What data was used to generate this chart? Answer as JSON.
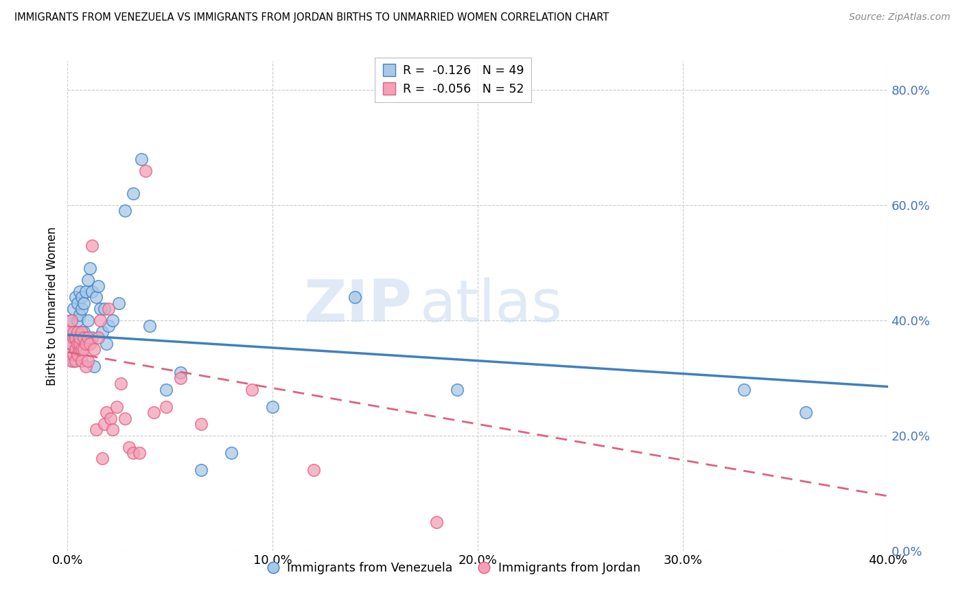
{
  "title": "IMMIGRANTS FROM VENEZUELA VS IMMIGRANTS FROM JORDAN BIRTHS TO UNMARRIED WOMEN CORRELATION CHART",
  "source": "Source: ZipAtlas.com",
  "ylabel": "Births to Unmarried Women",
  "xlim": [
    0.0,
    0.4
  ],
  "ylim": [
    0.0,
    0.85
  ],
  "yticks": [
    0.0,
    0.2,
    0.4,
    0.6,
    0.8
  ],
  "xticks": [
    0.0,
    0.1,
    0.2,
    0.3,
    0.4
  ],
  "blue_color": "#a8c8e8",
  "pink_color": "#f4a0b8",
  "blue_line_color": "#4080c0",
  "pink_line_color": "#e06080",
  "watermark_zip": "ZIP",
  "watermark_atlas": "atlas",
  "blue_R": "-0.126",
  "blue_N": "49",
  "pink_R": "-0.056",
  "pink_N": "52",
  "legend2_blue": "Immigrants from Venezuela",
  "legend2_pink": "Immigrants from Jordan",
  "venezuela_x": [
    0.001,
    0.002,
    0.002,
    0.003,
    0.003,
    0.003,
    0.004,
    0.004,
    0.005,
    0.005,
    0.005,
    0.006,
    0.006,
    0.006,
    0.007,
    0.007,
    0.007,
    0.008,
    0.008,
    0.009,
    0.009,
    0.01,
    0.01,
    0.011,
    0.012,
    0.012,
    0.013,
    0.014,
    0.015,
    0.016,
    0.017,
    0.018,
    0.019,
    0.02,
    0.022,
    0.025,
    0.028,
    0.032,
    0.036,
    0.04,
    0.048,
    0.055,
    0.065,
    0.08,
    0.1,
    0.14,
    0.19,
    0.33,
    0.36
  ],
  "venezuela_y": [
    0.37,
    0.36,
    0.4,
    0.33,
    0.37,
    0.42,
    0.38,
    0.44,
    0.37,
    0.4,
    0.43,
    0.37,
    0.41,
    0.45,
    0.36,
    0.42,
    0.44,
    0.38,
    0.43,
    0.36,
    0.45,
    0.4,
    0.47,
    0.49,
    0.45,
    0.37,
    0.32,
    0.44,
    0.46,
    0.42,
    0.38,
    0.42,
    0.36,
    0.39,
    0.4,
    0.43,
    0.59,
    0.62,
    0.68,
    0.39,
    0.28,
    0.31,
    0.14,
    0.17,
    0.25,
    0.44,
    0.28,
    0.28,
    0.24
  ],
  "jordan_x": [
    0.001,
    0.001,
    0.002,
    0.002,
    0.002,
    0.003,
    0.003,
    0.003,
    0.004,
    0.004,
    0.004,
    0.005,
    0.005,
    0.005,
    0.006,
    0.006,
    0.006,
    0.007,
    0.007,
    0.007,
    0.008,
    0.008,
    0.009,
    0.009,
    0.01,
    0.01,
    0.011,
    0.012,
    0.013,
    0.014,
    0.015,
    0.016,
    0.017,
    0.018,
    0.019,
    0.02,
    0.021,
    0.022,
    0.024,
    0.026,
    0.028,
    0.03,
    0.032,
    0.035,
    0.038,
    0.042,
    0.048,
    0.055,
    0.065,
    0.09,
    0.12,
    0.18
  ],
  "jordan_y": [
    0.36,
    0.38,
    0.33,
    0.36,
    0.4,
    0.34,
    0.37,
    0.38,
    0.33,
    0.35,
    0.37,
    0.34,
    0.36,
    0.38,
    0.35,
    0.36,
    0.37,
    0.33,
    0.35,
    0.38,
    0.35,
    0.37,
    0.32,
    0.36,
    0.33,
    0.37,
    0.36,
    0.53,
    0.35,
    0.21,
    0.37,
    0.4,
    0.16,
    0.22,
    0.24,
    0.42,
    0.23,
    0.21,
    0.25,
    0.29,
    0.23,
    0.18,
    0.17,
    0.17,
    0.66,
    0.24,
    0.25,
    0.3,
    0.22,
    0.28,
    0.14,
    0.05
  ],
  "ven_line_x": [
    0.0,
    0.4
  ],
  "ven_line_y": [
    0.375,
    0.285
  ],
  "jor_line_x": [
    0.0,
    0.4
  ],
  "jor_line_y": [
    0.345,
    0.095
  ]
}
